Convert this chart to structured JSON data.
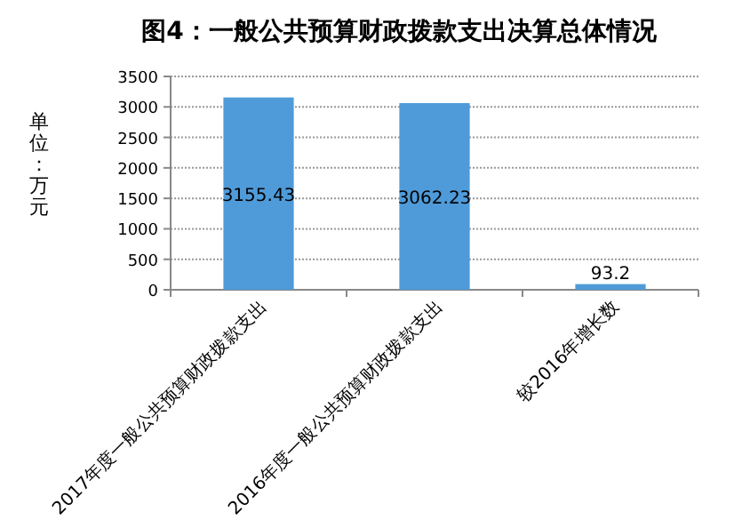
{
  "chart_data": {
    "type": "bar",
    "title": "图4：一般公共预算财政拨款支出决算总体情况",
    "ylabel": "单位：万元",
    "categories": [
      "2017年度一般公共预算财政拨款支出",
      "2016年度一般公共预算财政拨款支出",
      "较2016年增长数"
    ],
    "values": [
      3155.43,
      3062.23,
      93.2
    ],
    "color": "#4f9bd9",
    "ylim": [
      0,
      3500
    ],
    "yticks": [
      0,
      500,
      1000,
      1500,
      2000,
      2500,
      3000,
      3500
    ],
    "grid": "y",
    "data_labels": true
  }
}
